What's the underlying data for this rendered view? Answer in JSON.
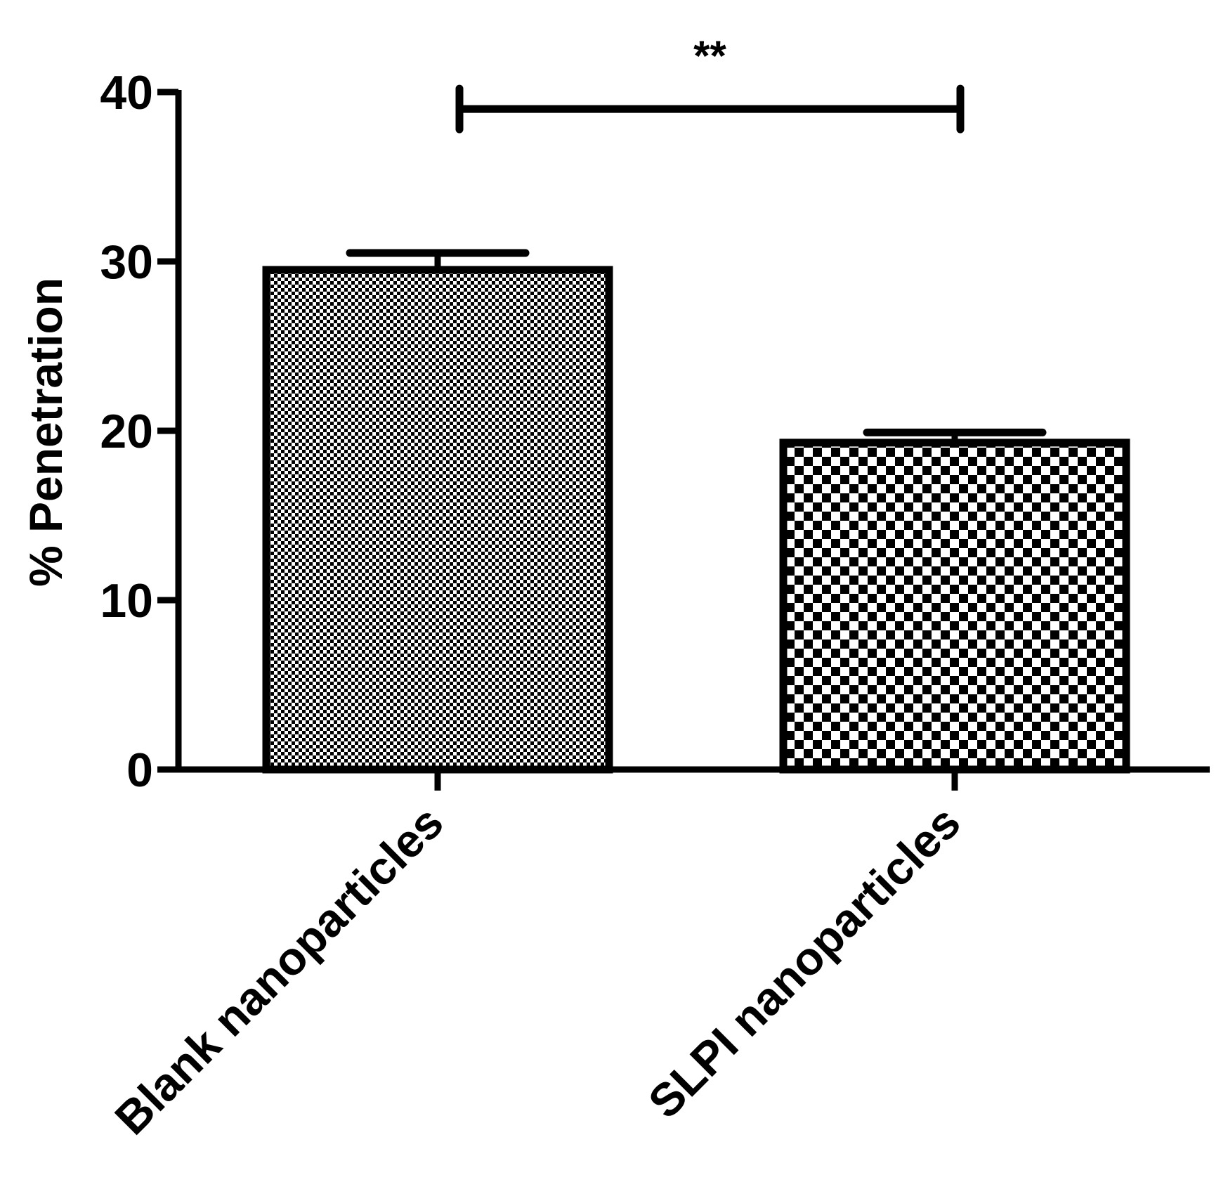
{
  "chart_data": {
    "type": "bar",
    "categories": [
      "Blank nanoparticles",
      "SLPI nanoparticles"
    ],
    "series": [
      {
        "values": [
          29.5,
          19.3
        ],
        "errors": [
          1.0,
          0.6
        ]
      }
    ],
    "title": "",
    "xlabel": "",
    "ylabel": "% Penetration",
    "ylim": [
      0,
      40
    ],
    "yticks": [
      "0",
      "10",
      "20",
      "30",
      "40"
    ],
    "ytick_values": [
      0,
      10,
      20,
      30,
      40
    ],
    "grid": false,
    "legend": "none",
    "patterns": [
      "fine-checker",
      "coarse-checker"
    ],
    "annotations": [
      {
        "text": "**",
        "between": [
          0,
          1
        ],
        "y": 39
      }
    ]
  },
  "colors": {
    "ink": "#000000",
    "background": "#ffffff"
  }
}
